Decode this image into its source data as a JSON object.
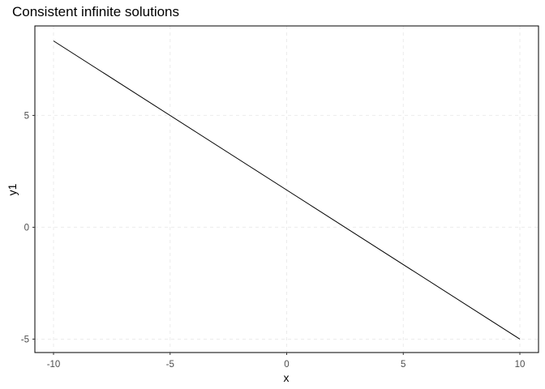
{
  "chart_data": {
    "type": "line",
    "title": "Consistent infinite solutions",
    "xlabel": "x",
    "ylabel": "y1",
    "xlim": [
      -10.8,
      10.8
    ],
    "ylim": [
      -5.6,
      9.0
    ],
    "x_ticks": [
      -10,
      -5,
      0,
      5,
      10
    ],
    "y_ticks": [
      -5,
      0,
      5
    ],
    "x_tick_labels": [
      "-10",
      "-5",
      "0",
      "5",
      "10"
    ],
    "y_tick_labels": [
      "-5",
      "0",
      "5"
    ],
    "grid": true,
    "series": [
      {
        "x": [
          -10,
          10
        ],
        "y": [
          8.33,
          -5.0
        ],
        "color": "#000000"
      }
    ]
  }
}
